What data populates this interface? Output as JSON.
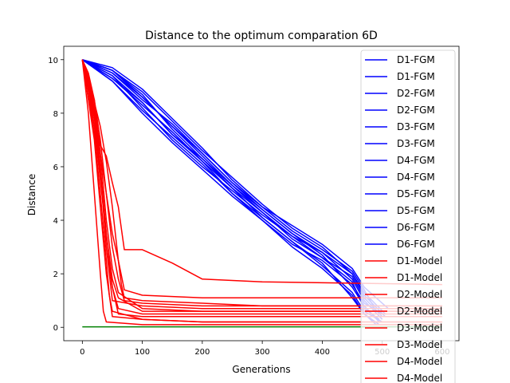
{
  "chart_data": {
    "type": "line",
    "title": "Distance to the optimum comparation 6D",
    "xlabel": "Generations",
    "ylabel": "Distance",
    "xlim": [
      -31,
      628
    ],
    "ylim": [
      -0.5,
      10.5
    ],
    "xticks": [
      0,
      100,
      200,
      300,
      400,
      500,
      600
    ],
    "yticks": [
      0,
      2,
      4,
      6,
      8,
      10
    ],
    "xtick_labels": [
      "0",
      "100",
      "200",
      "300",
      "400",
      "500",
      "600"
    ],
    "ytick_labels": [
      "0",
      "2",
      "4",
      "6",
      "8",
      "10"
    ],
    "grid": false,
    "legend_position": "right",
    "legend": [
      {
        "label": "D1-FGM",
        "color": "#0000ff"
      },
      {
        "label": "D1-FGM",
        "color": "#0000ff"
      },
      {
        "label": "D2-FGM",
        "color": "#0000ff"
      },
      {
        "label": "D2-FGM",
        "color": "#0000ff"
      },
      {
        "label": "D3-FGM",
        "color": "#0000ff"
      },
      {
        "label": "D3-FGM",
        "color": "#0000ff"
      },
      {
        "label": "D4-FGM",
        "color": "#0000ff"
      },
      {
        "label": "D4-FGM",
        "color": "#0000ff"
      },
      {
        "label": "D5-FGM",
        "color": "#0000ff"
      },
      {
        "label": "D5-FGM",
        "color": "#0000ff"
      },
      {
        "label": "D6-FGM",
        "color": "#0000ff"
      },
      {
        "label": "D6-FGM",
        "color": "#0000ff"
      },
      {
        "label": "D1-Model",
        "color": "#ff0000"
      },
      {
        "label": "D1-Model",
        "color": "#ff0000"
      },
      {
        "label": "D2-Model",
        "color": "#ff0000"
      },
      {
        "label": "D2-Model",
        "color": "#ff0000"
      },
      {
        "label": "D3-Model",
        "color": "#ff0000"
      },
      {
        "label": "D3-Model",
        "color": "#ff0000"
      },
      {
        "label": "D4-Model",
        "color": "#ff0000"
      },
      {
        "label": "D4-Model",
        "color": "#ff0000"
      }
    ],
    "series": [
      {
        "color": "#0000ff",
        "x": [
          0,
          50,
          100,
          150,
          200,
          250,
          300,
          350,
          400,
          450,
          470,
          490
        ],
        "y": [
          10,
          9.3,
          8.4,
          7.2,
          6.2,
          5.0,
          4.1,
          3.2,
          2.4,
          1.1,
          0.5,
          0.1
        ]
      },
      {
        "color": "#0000ff",
        "x": [
          0,
          50,
          100,
          150,
          200,
          250,
          300,
          350,
          400,
          450,
          470,
          495
        ],
        "y": [
          10,
          9.5,
          8.6,
          7.5,
          6.4,
          5.3,
          4.4,
          3.5,
          2.7,
          1.5,
          0.8,
          0.2
        ]
      },
      {
        "color": "#0000ff",
        "x": [
          0,
          50,
          100,
          150,
          200,
          250,
          300,
          350,
          400,
          450,
          470,
          500
        ],
        "y": [
          10,
          9.4,
          8.2,
          7.0,
          6.0,
          5.1,
          4.2,
          3.4,
          2.8,
          1.8,
          1.0,
          0.3
        ]
      },
      {
        "color": "#0000ff",
        "x": [
          0,
          50,
          100,
          150,
          200,
          250,
          300,
          350,
          400,
          450,
          470,
          505
        ],
        "y": [
          10,
          9.6,
          8.8,
          7.7,
          6.6,
          5.6,
          4.6,
          3.7,
          3.0,
          2.0,
          1.2,
          0.4
        ]
      },
      {
        "color": "#0000ff",
        "x": [
          0,
          50,
          100,
          150,
          200,
          250,
          300,
          350,
          400,
          450,
          470,
          500
        ],
        "y": [
          10,
          9.2,
          8.1,
          7.1,
          6.1,
          5.0,
          4.0,
          3.1,
          2.5,
          1.6,
          0.9,
          0.5
        ]
      },
      {
        "color": "#0000ff",
        "x": [
          0,
          50,
          100,
          150,
          200,
          250,
          300,
          350,
          400,
          450,
          470,
          495
        ],
        "y": [
          10,
          9.6,
          8.7,
          7.4,
          6.3,
          5.2,
          4.3,
          3.3,
          2.6,
          1.7,
          0.7,
          0.3
        ]
      },
      {
        "color": "#0000ff",
        "x": [
          0,
          50,
          100,
          150,
          200,
          250,
          300,
          350,
          400,
          450,
          470,
          490
        ],
        "y": [
          10,
          9.5,
          8.5,
          7.6,
          6.5,
          5.4,
          4.5,
          3.6,
          2.9,
          2.1,
          1.4,
          0.6
        ]
      },
      {
        "color": "#0000ff",
        "x": [
          0,
          50,
          100,
          150,
          200,
          250,
          300,
          350,
          400,
          450,
          470,
          500
        ],
        "y": [
          10,
          9.3,
          8.3,
          7.3,
          6.2,
          5.2,
          4.1,
          3.2,
          2.3,
          1.3,
          0.6,
          0.2
        ]
      },
      {
        "color": "#0000ff",
        "x": [
          0,
          50,
          100,
          150,
          200,
          250,
          300,
          350,
          400,
          450,
          470,
          510
        ],
        "y": [
          10,
          9.7,
          8.9,
          7.8,
          6.7,
          5.5,
          4.5,
          3.8,
          3.1,
          2.2,
          1.5,
          0.7
        ]
      },
      {
        "color": "#0000ff",
        "x": [
          0,
          50,
          100,
          150,
          200,
          250,
          300,
          350,
          400,
          450,
          470,
          500
        ],
        "y": [
          10,
          9.4,
          8.4,
          7.2,
          6.3,
          5.3,
          4.3,
          3.4,
          2.6,
          1.9,
          1.1,
          0.4
        ]
      },
      {
        "color": "#0000ff",
        "x": [
          0,
          50,
          100,
          150,
          200,
          250,
          300,
          350,
          400,
          450,
          470,
          495
        ],
        "y": [
          10,
          9.2,
          8.0,
          6.9,
          5.9,
          4.9,
          4.0,
          3.0,
          2.2,
          1.2,
          0.5,
          0.1
        ]
      },
      {
        "color": "#0000ff",
        "x": [
          0,
          50,
          100,
          150,
          200,
          250,
          300,
          350,
          400,
          450,
          470,
          505
        ],
        "y": [
          10,
          9.6,
          8.6,
          7.5,
          6.5,
          5.4,
          4.4,
          3.5,
          2.8,
          2.0,
          1.3,
          0.5
        ]
      },
      {
        "color": "#ff0000",
        "x": [
          0,
          10,
          20,
          30,
          40,
          50,
          60,
          65,
          70,
          100,
          200,
          300,
          600
        ],
        "y": [
          10,
          9.0,
          8.5,
          7.0,
          5.0,
          3.5,
          2.5,
          1.6,
          1.1,
          1.0,
          0.9,
          0.8,
          0.8
        ]
      },
      {
        "color": "#ff0000",
        "x": [
          0,
          10,
          20,
          30,
          40,
          50,
          60,
          70,
          100,
          150,
          200,
          300,
          600
        ],
        "y": [
          10,
          9.3,
          8.0,
          6.8,
          6.4,
          5.4,
          4.5,
          2.9,
          2.9,
          2.4,
          1.8,
          1.7,
          1.6
        ]
      },
      {
        "color": "#ff0000",
        "x": [
          0,
          10,
          20,
          30,
          40,
          50,
          60,
          100,
          200,
          600
        ],
        "y": [
          10,
          9.0,
          7.5,
          5.5,
          3.5,
          1.5,
          0.5,
          0.4,
          0.4,
          0.4
        ]
      },
      {
        "color": "#ff0000",
        "x": [
          0,
          10,
          20,
          30,
          40,
          50,
          60,
          70,
          100,
          200,
          600
        ],
        "y": [
          10,
          9.5,
          8.5,
          6.5,
          5.0,
          3.0,
          1.8,
          1.0,
          0.9,
          0.8,
          0.8
        ]
      },
      {
        "color": "#ff0000",
        "x": [
          0,
          10,
          20,
          30,
          40,
          45,
          50,
          100,
          200,
          600
        ],
        "y": [
          10,
          8.8,
          7.2,
          5.0,
          2.5,
          1.2,
          0.6,
          0.3,
          0.2,
          0.2
        ]
      },
      {
        "color": "#ff0000",
        "x": [
          0,
          10,
          20,
          30,
          40,
          50,
          60,
          80,
          100,
          200,
          600
        ],
        "y": [
          10,
          9.2,
          8.2,
          6.5,
          4.0,
          2.2,
          1.3,
          1.0,
          0.7,
          0.6,
          0.6
        ]
      },
      {
        "color": "#ff0000",
        "x": [
          0,
          10,
          20,
          30,
          40,
          50,
          100,
          200,
          600
        ],
        "y": [
          10,
          8.5,
          7.0,
          4.5,
          2.0,
          0.4,
          0.3,
          0.2,
          0.2
        ]
      },
      {
        "color": "#ff0000",
        "x": [
          0,
          10,
          20,
          30,
          40,
          50,
          60,
          100,
          200,
          600
        ],
        "y": [
          10,
          9.0,
          8.0,
          6.0,
          3.0,
          1.5,
          0.7,
          0.5,
          0.5,
          0.5
        ]
      },
      {
        "color": "#ff0000",
        "x": [
          0,
          10,
          20,
          30,
          40,
          50,
          60,
          100,
          600
        ],
        "y": [
          10,
          9.4,
          8.4,
          6.0,
          3.5,
          1.8,
          1.1,
          0.6,
          0.6
        ]
      },
      {
        "color": "#ff0000",
        "x": [
          0,
          10,
          20,
          30,
          35,
          40,
          100,
          200,
          600
        ],
        "y": [
          10,
          8.0,
          5.0,
          2.0,
          0.6,
          0.2,
          0.1,
          0.1,
          0.1
        ]
      },
      {
        "color": "#ff0000",
        "x": [
          0,
          10,
          20,
          30,
          40,
          50,
          60,
          70,
          100,
          200,
          600
        ],
        "y": [
          10,
          9.2,
          8.4,
          7.5,
          6.2,
          4.5,
          2.5,
          1.4,
          1.2,
          1.1,
          1.1
        ]
      },
      {
        "color": "#ff0000",
        "x": [
          0,
          10,
          20,
          30,
          40,
          50,
          100,
          200,
          600
        ],
        "y": [
          10,
          9.0,
          7.8,
          5.8,
          3.0,
          1.0,
          0.8,
          0.7,
          0.7
        ]
      },
      {
        "color": "#008000",
        "x": [
          0,
          600
        ],
        "y": [
          0.02,
          0.02
        ]
      }
    ]
  }
}
